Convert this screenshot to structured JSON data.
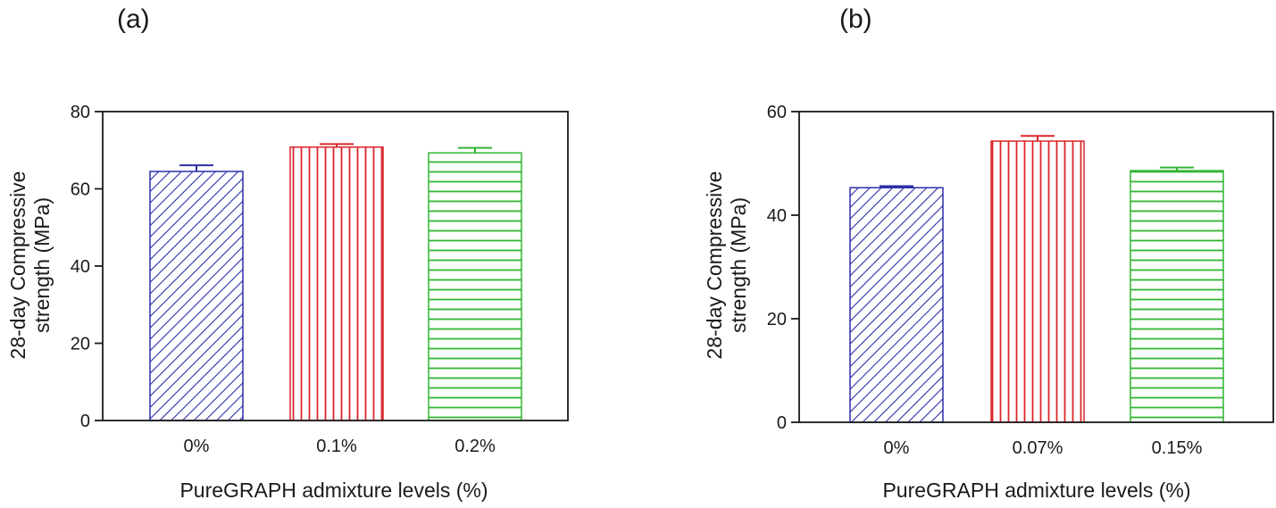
{
  "chart_data": [
    {
      "type": "bar",
      "panel_label": "(a)",
      "categories": [
        "0%",
        "0.1%",
        "0.2%"
      ],
      "values": [
        64.5,
        70.8,
        69.3
      ],
      "errors": [
        1.6,
        0.8,
        1.3
      ],
      "colors": [
        "#2b2fa8",
        "#d9262c",
        "#31b531"
      ],
      "patterns": [
        "diagonal",
        "vertical",
        "horizontal"
      ],
      "xlabel": "PureGRAPH admixture levels (%)",
      "ylabel_line1": "28-day Compressive",
      "ylabel_line2": "strength (MPa)",
      "ylim": [
        0,
        80
      ],
      "yticks": [
        "0",
        "20",
        "40",
        "60",
        "80"
      ]
    },
    {
      "type": "bar",
      "panel_label": "(b)",
      "categories": [
        "0%",
        "0.07%",
        "0.15%"
      ],
      "values": [
        45.3,
        54.3,
        48.6
      ],
      "errors": [
        0.3,
        1.0,
        0.6
      ],
      "colors": [
        "#2b2fa8",
        "#d9262c",
        "#31b531"
      ],
      "patterns": [
        "diagonal",
        "vertical",
        "horizontal"
      ],
      "xlabel": "PureGRAPH admixture levels (%)",
      "ylabel_line1": "28-day Compressive",
      "ylabel_line2": "strength (MPa)",
      "ylim": [
        0,
        60
      ],
      "yticks": [
        "0",
        "20",
        "40",
        "60"
      ]
    }
  ]
}
